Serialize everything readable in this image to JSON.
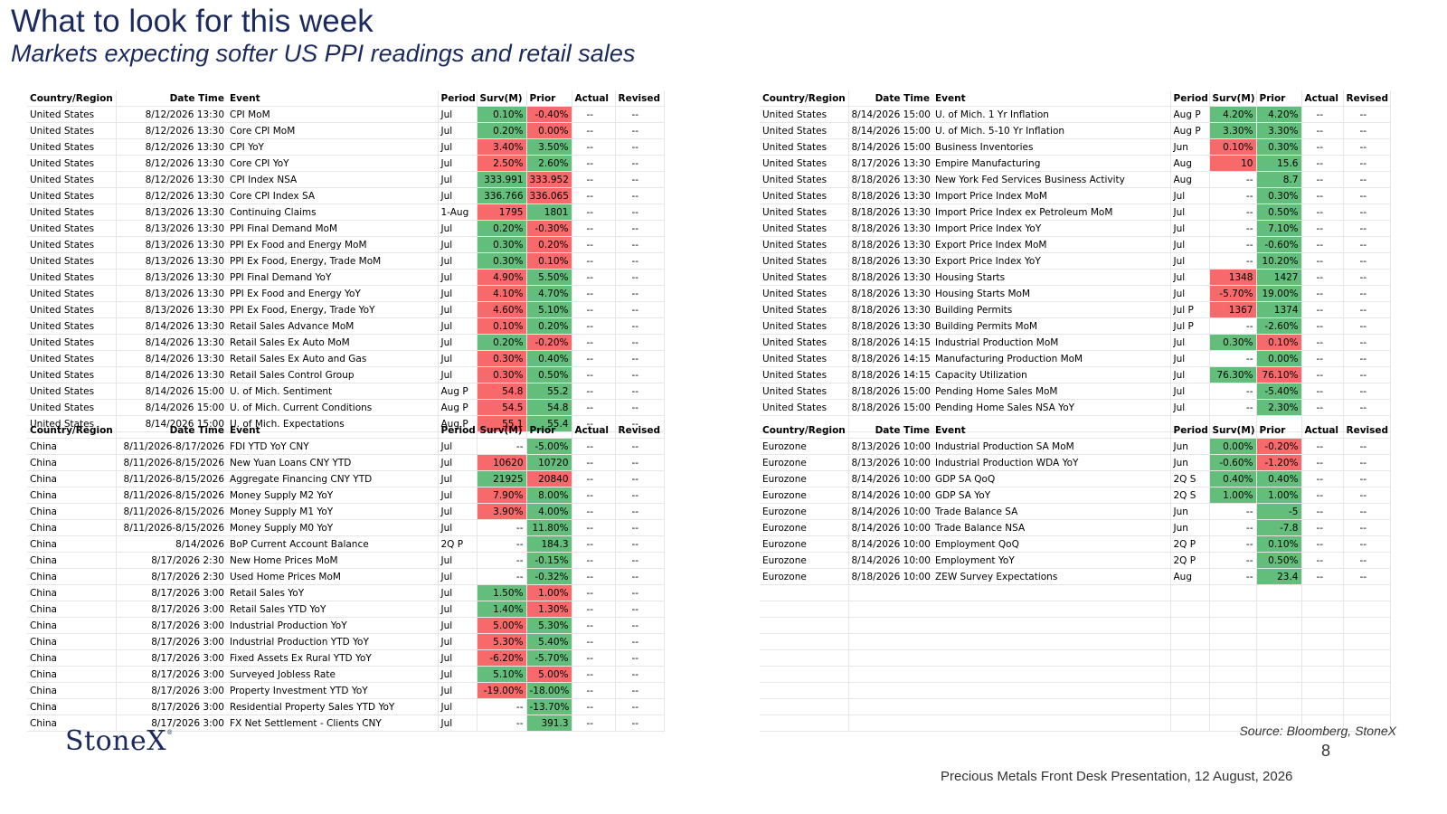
{
  "header": {
    "title": "What to look for this week",
    "subtitle": "Markets expecting softer US PPI readings and retail sales"
  },
  "columns": [
    "Country/Region",
    "Date Time",
    "Event",
    "Period",
    "Surv(M)",
    "Prior",
    "Actual",
    "Revised"
  ],
  "colors": {
    "green": "#63be7b",
    "red": "#f8696b",
    "title": "#1b2a5e"
  },
  "tables": [
    {
      "id": "us-left",
      "rows": [
        [
          "United States",
          "8/12/2026 13:30",
          "CPI MoM",
          "Jul",
          "0.10%",
          "-0.40%",
          "--",
          "--",
          "g",
          "r"
        ],
        [
          "United States",
          "8/12/2026 13:30",
          "Core CPI MoM",
          "Jul",
          "0.20%",
          "0.00%",
          "--",
          "--",
          "g",
          "r"
        ],
        [
          "United States",
          "8/12/2026 13:30",
          "CPI YoY",
          "Jul",
          "3.40%",
          "3.50%",
          "--",
          "--",
          "r",
          "g"
        ],
        [
          "United States",
          "8/12/2026 13:30",
          "Core CPI YoY",
          "Jul",
          "2.50%",
          "2.60%",
          "--",
          "--",
          "r",
          "g"
        ],
        [
          "United States",
          "8/12/2026 13:30",
          "CPI Index NSA",
          "Jul",
          "333.991",
          "333.952",
          "--",
          "--",
          "g",
          "r"
        ],
        [
          "United States",
          "8/12/2026 13:30",
          "Core CPI Index SA",
          "Jul",
          "336.766",
          "336.065",
          "--",
          "--",
          "g",
          "r"
        ],
        [
          "United States",
          "8/13/2026 13:30",
          "Continuing Claims",
          "1-Aug",
          "1795",
          "1801",
          "--",
          "--",
          "r",
          "g"
        ],
        [
          "United States",
          "8/13/2026 13:30",
          "PPI Final Demand MoM",
          "Jul",
          "0.20%",
          "-0.30%",
          "--",
          "--",
          "g",
          "r"
        ],
        [
          "United States",
          "8/13/2026 13:30",
          "PPI Ex Food and Energy MoM",
          "Jul",
          "0.30%",
          "0.20%",
          "--",
          "--",
          "g",
          "r"
        ],
        [
          "United States",
          "8/13/2026 13:30",
          "PPI Ex Food, Energy, Trade MoM",
          "Jul",
          "0.30%",
          "0.10%",
          "--",
          "--",
          "g",
          "r"
        ],
        [
          "United States",
          "8/13/2026 13:30",
          "PPI Final Demand YoY",
          "Jul",
          "4.90%",
          "5.50%",
          "--",
          "--",
          "r",
          "g"
        ],
        [
          "United States",
          "8/13/2026 13:30",
          "PPI Ex Food and Energy YoY",
          "Jul",
          "4.10%",
          "4.70%",
          "--",
          "--",
          "r",
          "g"
        ],
        [
          "United States",
          "8/13/2026 13:30",
          "PPI Ex Food, Energy, Trade YoY",
          "Jul",
          "4.60%",
          "5.10%",
          "--",
          "--",
          "r",
          "g"
        ],
        [
          "United States",
          "8/14/2026 13:30",
          "Retail Sales Advance MoM",
          "Jul",
          "0.10%",
          "0.20%",
          "--",
          "--",
          "r",
          "g"
        ],
        [
          "United States",
          "8/14/2026 13:30",
          "Retail Sales Ex Auto MoM",
          "Jul",
          "0.20%",
          "-0.20%",
          "--",
          "--",
          "g",
          "r"
        ],
        [
          "United States",
          "8/14/2026 13:30",
          "Retail Sales Ex Auto and Gas",
          "Jul",
          "0.30%",
          "0.40%",
          "--",
          "--",
          "r",
          "g"
        ],
        [
          "United States",
          "8/14/2026 13:30",
          "Retail Sales Control Group",
          "Jul",
          "0.30%",
          "0.50%",
          "--",
          "--",
          "r",
          "g"
        ],
        [
          "United States",
          "8/14/2026 15:00",
          "U. of Mich. Sentiment",
          "Aug P",
          "54.8",
          "55.2",
          "--",
          "--",
          "r",
          "g"
        ],
        [
          "United States",
          "8/14/2026 15:00",
          "U. of Mich. Current Conditions",
          "Aug P",
          "54.5",
          "54.8",
          "--",
          "--",
          "r",
          "g"
        ],
        [
          "United States",
          "8/14/2026 15:00",
          "U. of Mich. Expectations",
          "Aug P",
          "55.1",
          "55.4",
          "--",
          "--",
          "r",
          "g"
        ]
      ]
    },
    {
      "id": "us-right",
      "rows": [
        [
          "United States",
          "8/14/2026 15:00",
          "U. of Mich. 1 Yr Inflation",
          "Aug P",
          "4.20%",
          "4.20%",
          "--",
          "--",
          "g",
          "g"
        ],
        [
          "United States",
          "8/14/2026 15:00",
          "U. of Mich. 5-10 Yr Inflation",
          "Aug P",
          "3.30%",
          "3.30%",
          "--",
          "--",
          "g",
          "g"
        ],
        [
          "United States",
          "8/14/2026 15:00",
          "Business Inventories",
          "Jun",
          "0.10%",
          "0.30%",
          "--",
          "--",
          "r",
          "g"
        ],
        [
          "United States",
          "8/17/2026 13:30",
          "Empire Manufacturing",
          "Aug",
          "10",
          "15.6",
          "--",
          "--",
          "r",
          "g"
        ],
        [
          "United States",
          "8/18/2026 13:30",
          "New York Fed Services Business Activity",
          "Aug",
          "--",
          "8.7",
          "--",
          "--",
          "",
          "g"
        ],
        [
          "United States",
          "8/18/2026 13:30",
          "Import Price Index MoM",
          "Jul",
          "--",
          "0.30%",
          "--",
          "--",
          "",
          "g"
        ],
        [
          "United States",
          "8/18/2026 13:30",
          "Import Price Index ex Petroleum MoM",
          "Jul",
          "--",
          "0.50%",
          "--",
          "--",
          "",
          "g"
        ],
        [
          "United States",
          "8/18/2026 13:30",
          "Import Price Index YoY",
          "Jul",
          "--",
          "7.10%",
          "--",
          "--",
          "",
          "g"
        ],
        [
          "United States",
          "8/18/2026 13:30",
          "Export Price Index MoM",
          "Jul",
          "--",
          "-0.60%",
          "--",
          "--",
          "",
          "g"
        ],
        [
          "United States",
          "8/18/2026 13:30",
          "Export Price Index YoY",
          "Jul",
          "--",
          "10.20%",
          "--",
          "--",
          "",
          "g"
        ],
        [
          "United States",
          "8/18/2026 13:30",
          "Housing Starts",
          "Jul",
          "1348",
          "1427",
          "--",
          "--",
          "r",
          "g"
        ],
        [
          "United States",
          "8/18/2026 13:30",
          "Housing Starts MoM",
          "Jul",
          "-5.70%",
          "19.00%",
          "--",
          "--",
          "r",
          "g"
        ],
        [
          "United States",
          "8/18/2026 13:30",
          "Building Permits",
          "Jul P",
          "1367",
          "1374",
          "--",
          "--",
          "r",
          "g"
        ],
        [
          "United States",
          "8/18/2026 13:30",
          "Building Permits MoM",
          "Jul P",
          "--",
          "-2.60%",
          "--",
          "--",
          "",
          "g"
        ],
        [
          "United States",
          "8/18/2026 14:15",
          "Industrial Production MoM",
          "Jul",
          "0.30%",
          "0.10%",
          "--",
          "--",
          "g",
          "r"
        ],
        [
          "United States",
          "8/18/2026 14:15",
          "Manufacturing Production MoM",
          "Jul",
          "--",
          "0.00%",
          "--",
          "--",
          "",
          "g"
        ],
        [
          "United States",
          "8/18/2026 14:15",
          "Capacity Utilization",
          "Jul",
          "76.30%",
          "76.10%",
          "--",
          "--",
          "g",
          "r"
        ],
        [
          "United States",
          "8/18/2026 15:00",
          "Pending Home Sales MoM",
          "Jul",
          "--",
          "-5.40%",
          "--",
          "--",
          "",
          "g"
        ],
        [
          "United States",
          "8/18/2026 15:00",
          "Pending Home Sales NSA YoY",
          "Jul",
          "--",
          "2.30%",
          "--",
          "--",
          "",
          "g"
        ],
        [
          "",
          "",
          "",
          "",
          "",
          "",
          "",
          "",
          "",
          ""
        ]
      ]
    },
    {
      "id": "china",
      "rows": [
        [
          "China",
          "8/11/2026-8/17/2026",
          "FDI YTD YoY CNY",
          "Jul",
          "--",
          "-5.00%",
          "--",
          "--",
          "",
          "g"
        ],
        [
          "China",
          "8/11/2026-8/15/2026",
          "New Yuan Loans CNY YTD",
          "Jul",
          "10620",
          "10720",
          "--",
          "--",
          "r",
          "g"
        ],
        [
          "China",
          "8/11/2026-8/15/2026",
          "Aggregate Financing CNY YTD",
          "Jul",
          "21925",
          "20840",
          "--",
          "--",
          "g",
          "r"
        ],
        [
          "China",
          "8/11/2026-8/15/2026",
          "Money Supply M2 YoY",
          "Jul",
          "7.90%",
          "8.00%",
          "--",
          "--",
          "r",
          "g"
        ],
        [
          "China",
          "8/11/2026-8/15/2026",
          "Money Supply M1 YoY",
          "Jul",
          "3.90%",
          "4.00%",
          "--",
          "--",
          "r",
          "g"
        ],
        [
          "China",
          "8/11/2026-8/15/2026",
          "Money Supply M0 YoY",
          "Jul",
          "--",
          "11.80%",
          "--",
          "--",
          "",
          "g"
        ],
        [
          "China",
          "8/14/2026",
          "BoP Current Account Balance",
          "2Q P",
          "--",
          "184.3",
          "--",
          "--",
          "",
          "g"
        ],
        [
          "China",
          "8/17/2026 2:30",
          "New Home Prices MoM",
          "Jul",
          "--",
          "-0.15%",
          "--",
          "--",
          "",
          "g"
        ],
        [
          "China",
          "8/17/2026 2:30",
          "Used Home Prices MoM",
          "Jul",
          "--",
          "-0.32%",
          "--",
          "--",
          "",
          "g"
        ],
        [
          "China",
          "8/17/2026 3:00",
          "Retail Sales YoY",
          "Jul",
          "1.50%",
          "1.00%",
          "--",
          "--",
          "g",
          "r"
        ],
        [
          "China",
          "8/17/2026 3:00",
          "Retail Sales YTD YoY",
          "Jul",
          "1.40%",
          "1.30%",
          "--",
          "--",
          "g",
          "r"
        ],
        [
          "China",
          "8/17/2026 3:00",
          "Industrial Production YoY",
          "Jul",
          "5.00%",
          "5.30%",
          "--",
          "--",
          "r",
          "g"
        ],
        [
          "China",
          "8/17/2026 3:00",
          "Industrial Production YTD YoY",
          "Jul",
          "5.30%",
          "5.40%",
          "--",
          "--",
          "r",
          "g"
        ],
        [
          "China",
          "8/17/2026 3:00",
          "Fixed Assets Ex Rural YTD YoY",
          "Jul",
          "-6.20%",
          "-5.70%",
          "--",
          "--",
          "r",
          "g"
        ],
        [
          "China",
          "8/17/2026 3:00",
          "Surveyed Jobless Rate",
          "Jul",
          "5.10%",
          "5.00%",
          "--",
          "--",
          "g",
          "r"
        ],
        [
          "China",
          "8/17/2026 3:00",
          "Property Investment YTD YoY",
          "Jul",
          "-19.00%",
          "-18.00%",
          "--",
          "--",
          "r",
          "g"
        ],
        [
          "China",
          "8/17/2026 3:00",
          "Residential Property Sales YTD YoY",
          "Jul",
          "--",
          "-13.70%",
          "--",
          "--",
          "",
          "g"
        ],
        [
          "China",
          "8/17/2026 3:00",
          "FX Net Settlement - Clients CNY",
          "Jul",
          "--",
          "391.3",
          "--",
          "--",
          "",
          "g"
        ]
      ]
    },
    {
      "id": "eurozone",
      "rows": [
        [
          "Eurozone",
          "8/13/2026 10:00",
          "Industrial Production SA MoM",
          "Jun",
          "0.00%",
          "-0.20%",
          "--",
          "--",
          "g",
          "r"
        ],
        [
          "Eurozone",
          "8/13/2026 10:00",
          "Industrial Production WDA YoY",
          "Jun",
          "-0.60%",
          "-1.20%",
          "--",
          "--",
          "g",
          "r"
        ],
        [
          "Eurozone",
          "8/14/2026 10:00",
          "GDP SA QoQ",
          "2Q S",
          "0.40%",
          "0.40%",
          "--",
          "--",
          "g",
          "g"
        ],
        [
          "Eurozone",
          "8/14/2026 10:00",
          "GDP SA YoY",
          "2Q S",
          "1.00%",
          "1.00%",
          "--",
          "--",
          "g",
          "g"
        ],
        [
          "Eurozone",
          "8/14/2026 10:00",
          "Trade Balance SA",
          "Jun",
          "--",
          "-5",
          "--",
          "--",
          "",
          "g"
        ],
        [
          "Eurozone",
          "8/14/2026 10:00",
          "Trade Balance NSA",
          "Jun",
          "--",
          "-7.8",
          "--",
          "--",
          "",
          "g"
        ],
        [
          "Eurozone",
          "8/14/2026 10:00",
          "Employment QoQ",
          "2Q P",
          "--",
          "0.10%",
          "--",
          "--",
          "",
          "g"
        ],
        [
          "Eurozone",
          "8/14/2026 10:00",
          "Employment YoY",
          "2Q P",
          "--",
          "0.50%",
          "--",
          "--",
          "",
          "g"
        ],
        [
          "Eurozone",
          "8/18/2026 10:00",
          "ZEW Survey Expectations",
          "Aug",
          "--",
          "23.4",
          "--",
          "--",
          "",
          "g"
        ],
        [
          "",
          "",
          "",
          "",
          "",
          "",
          "",
          "",
          "",
          ""
        ],
        [
          "",
          "",
          "",
          "",
          "",
          "",
          "",
          "",
          "",
          ""
        ],
        [
          "",
          "",
          "",
          "",
          "",
          "",
          "",
          "",
          "",
          ""
        ],
        [
          "",
          "",
          "",
          "",
          "",
          "",
          "",
          "",
          "",
          ""
        ],
        [
          "",
          "",
          "",
          "",
          "",
          "",
          "",
          "",
          "",
          ""
        ],
        [
          "",
          "",
          "",
          "",
          "",
          "",
          "",
          "",
          "",
          ""
        ],
        [
          "",
          "",
          "",
          "",
          "",
          "",
          "",
          "",
          "",
          ""
        ],
        [
          "",
          "",
          "",
          "",
          "",
          "",
          "",
          "",
          "",
          ""
        ],
        [
          "",
          "",
          "",
          "",
          "",
          "",
          "",
          "",
          "",
          ""
        ]
      ]
    }
  ],
  "footer": {
    "logo": "StoneX",
    "source": "Source: Bloomberg, StoneX",
    "page": "8",
    "presentation": "Precious Metals Front Desk Presentation, 12 August, 2026"
  }
}
